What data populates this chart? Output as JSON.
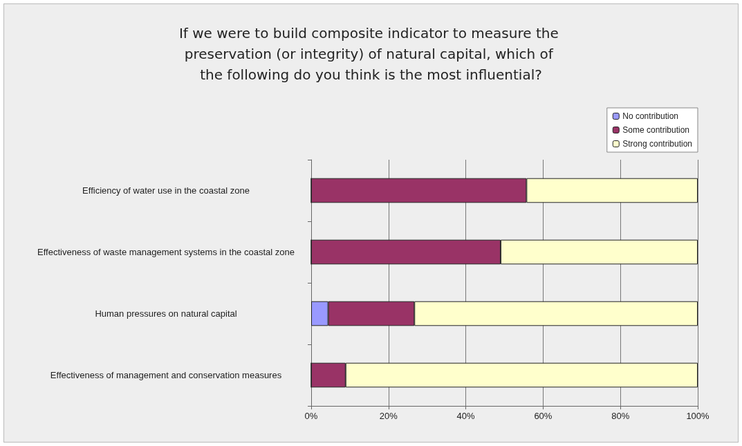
{
  "chart_data": {
    "type": "bar",
    "orientation": "horizontal",
    "stacked": true,
    "title": "If we were to build composite indicator to measure the preservation (or integrity) of natural capital, which of the following do you think is the most influential?",
    "categories": [
      "Efficiency of water use in the coastal zone",
      "Effectiveness of waste management systems in the coastal zone",
      "Human pressures on natural capital",
      "Effectiveness of management and conservation measures"
    ],
    "series": [
      {
        "name": "No contribution",
        "color": "#9999ff",
        "values": [
          0,
          0,
          4.4,
          0
        ]
      },
      {
        "name": "Some contribution",
        "color": "#993366",
        "values": [
          55.7,
          49,
          22.3,
          8.9
        ]
      },
      {
        "name": "Strong contribution",
        "color": "#ffffcc",
        "values": [
          44.3,
          51,
          73.3,
          91.1
        ]
      }
    ],
    "xlim": [
      0,
      100
    ],
    "xticks": [
      {
        "value": 0,
        "label": "0%"
      },
      {
        "value": 20,
        "label": "20%"
      },
      {
        "value": 40,
        "label": "40%"
      },
      {
        "value": 60,
        "label": "60%"
      },
      {
        "value": 80,
        "label": "80%"
      },
      {
        "value": 100,
        "label": "100%"
      }
    ],
    "grid": "x",
    "legend": "top right"
  }
}
